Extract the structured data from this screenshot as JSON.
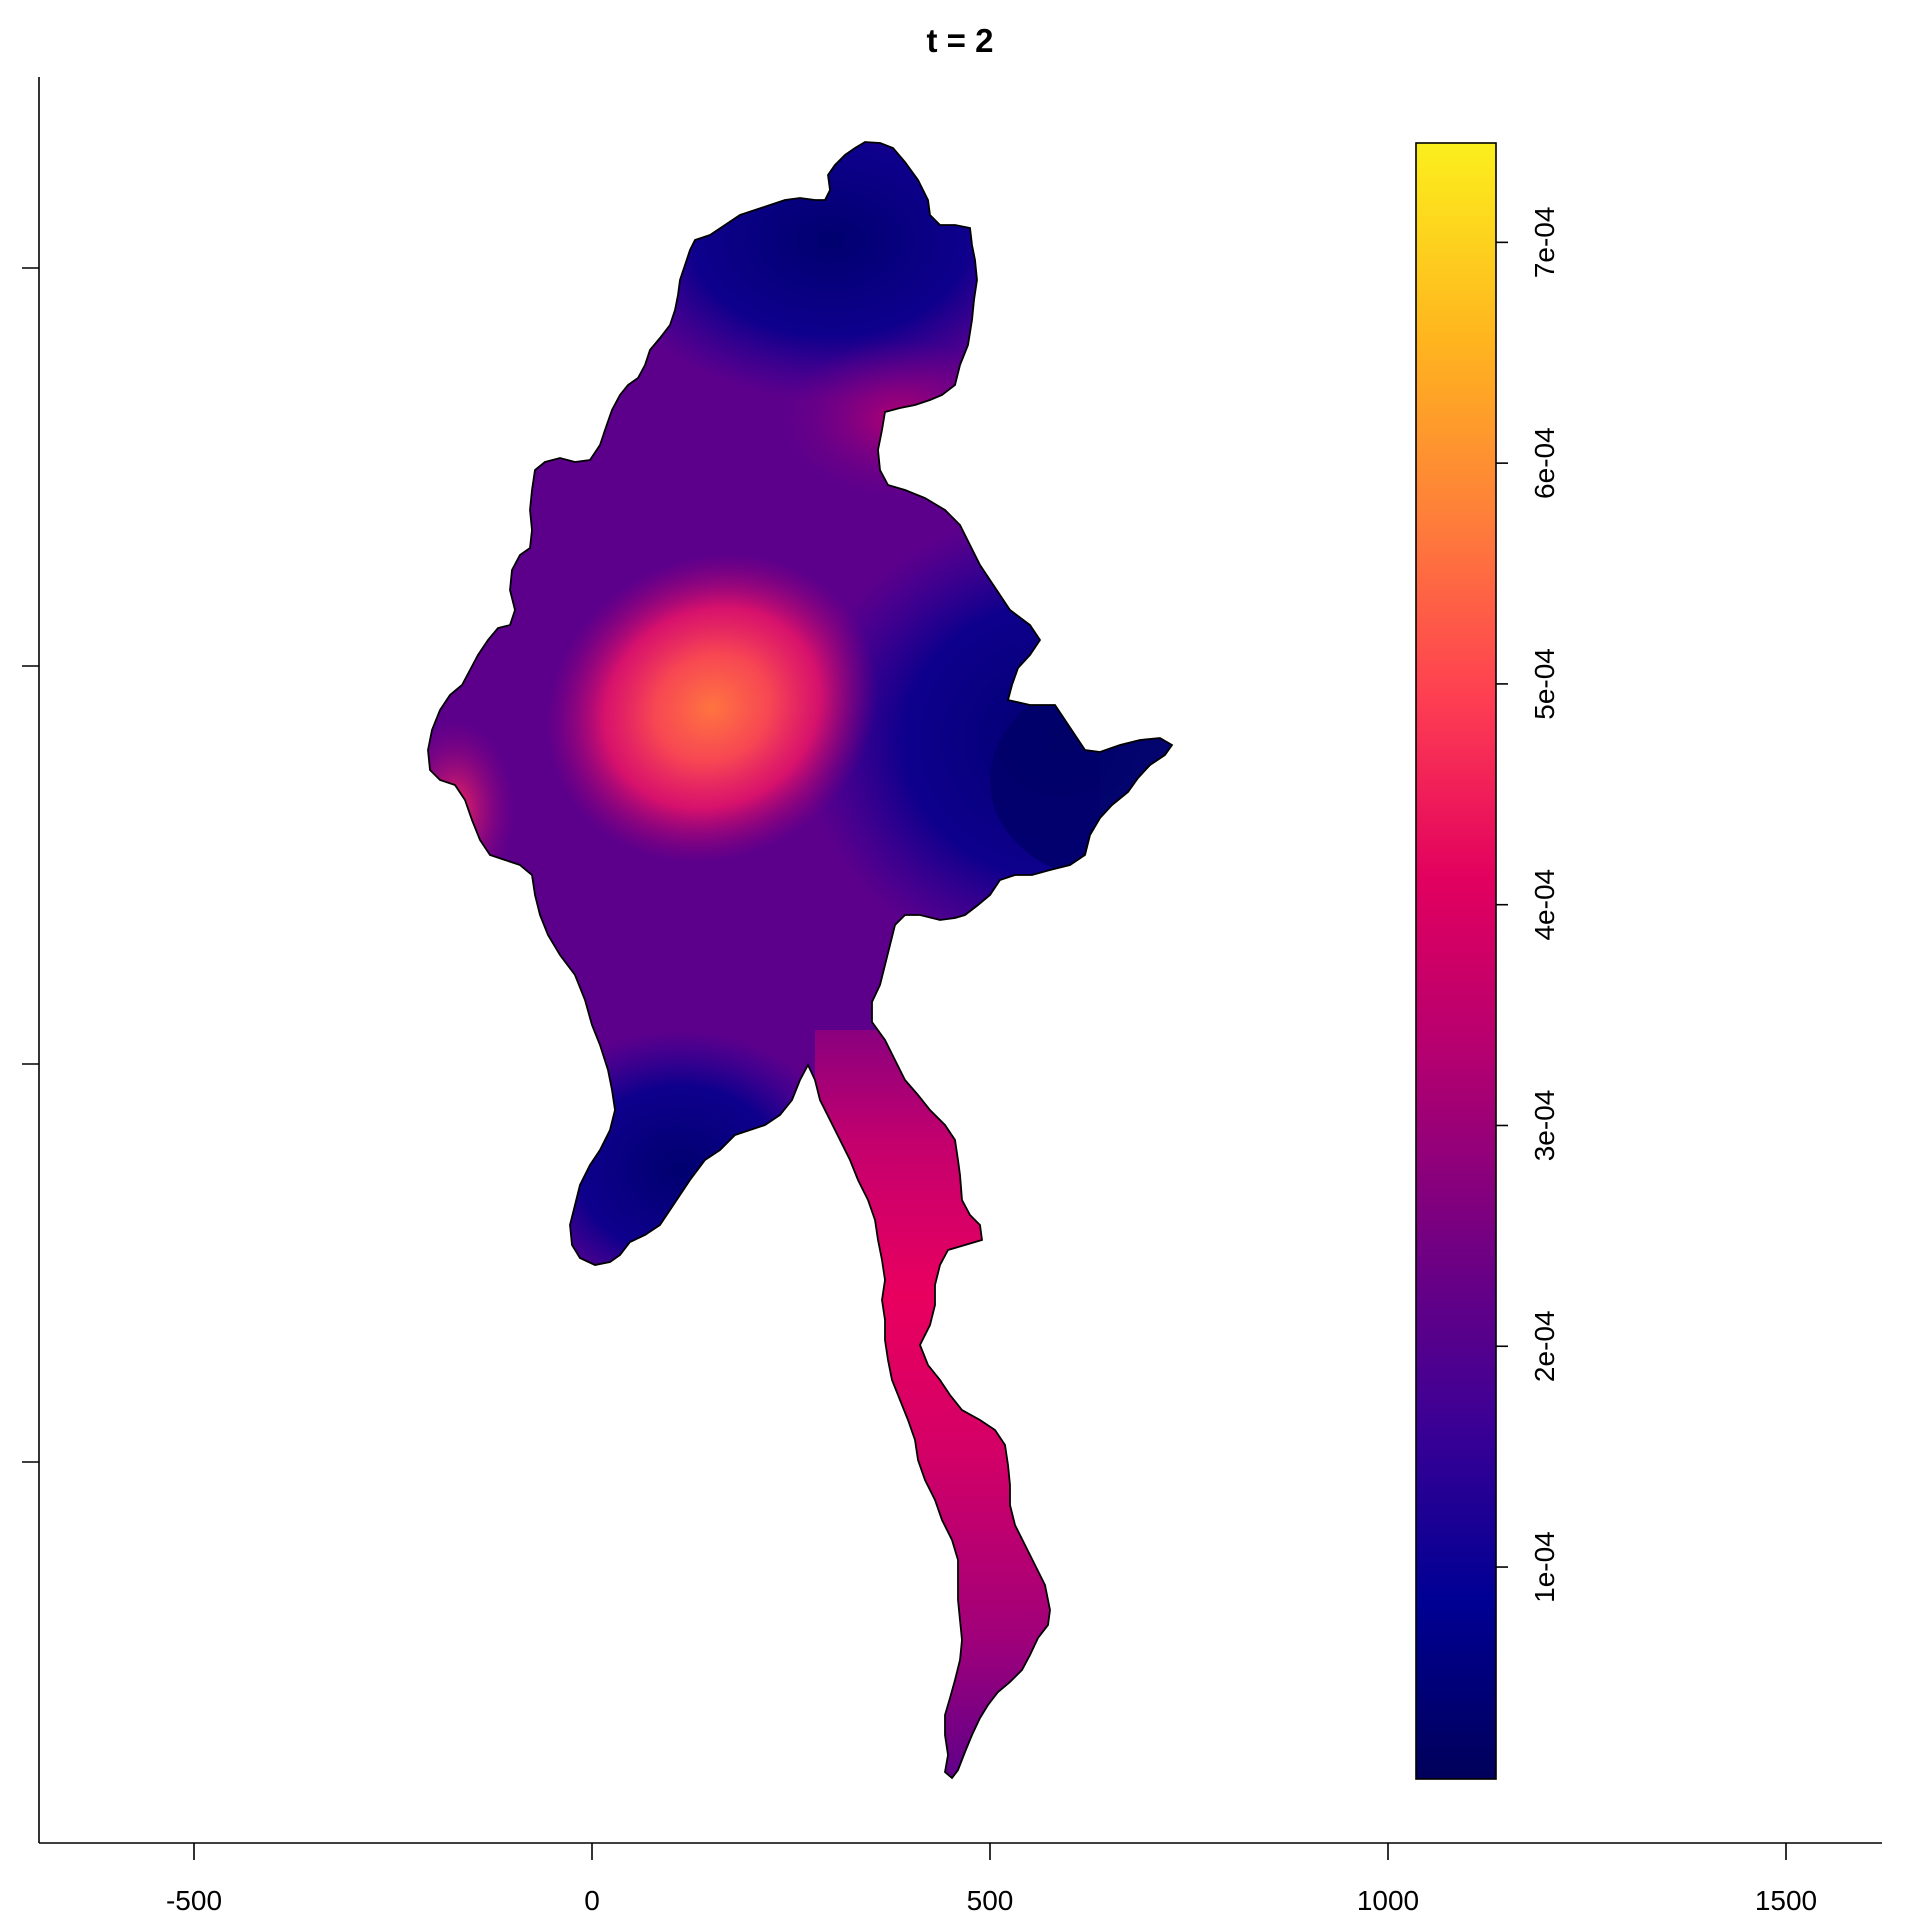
{
  "title": "t = 2",
  "x_axis": {
    "ticks": [
      "-500",
      "0",
      "500",
      "1000",
      "1500"
    ]
  },
  "legend": {
    "ticks": [
      "1e-04",
      "2e-04",
      "3e-04",
      "4e-04",
      "5e-04",
      "6e-04",
      "7e-04"
    ],
    "range": [
      4e-06,
      0.000745
    ],
    "colors": [
      "#00005a",
      "#000094",
      "#3d0095",
      "#740082",
      "#b30070",
      "#e2005f",
      "#fe3e52",
      "#fe7e3a",
      "#ffb51e",
      "#fbef1d"
    ]
  },
  "map": {
    "fill_scale": "plasma-like (dark blue → magenta → orange → yellow)",
    "hotspot_value": 0.00052,
    "colors": {
      "hot": "#ff7440",
      "warm": "#ff1762",
      "mid": "#7a0085",
      "cool": "#2a0098",
      "cold": "#00007c"
    }
  }
}
